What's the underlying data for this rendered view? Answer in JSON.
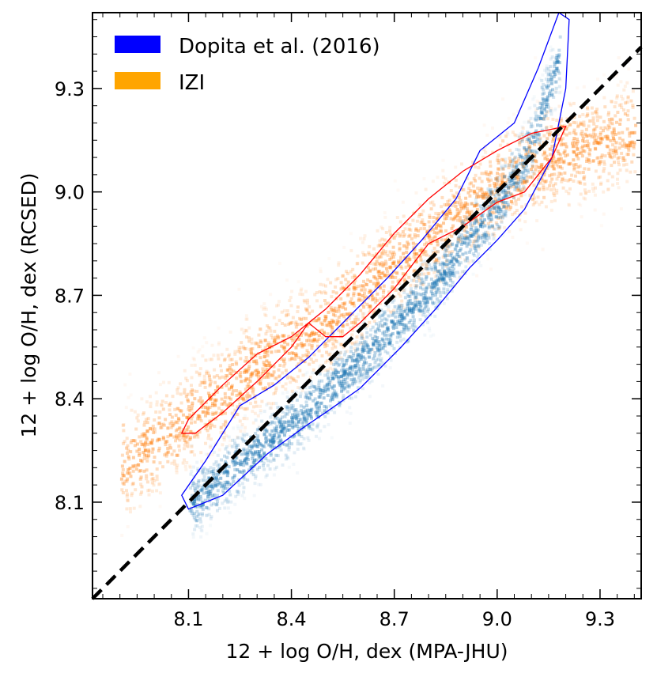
{
  "chart_data": {
    "type": "scatter",
    "xlabel": "12 + log O/H, dex (MPA-JHU)",
    "ylabel": "12 + log O/H, dex (RCSED)",
    "xlim": [
      7.82,
      9.42
    ],
    "ylim": [
      7.82,
      9.52
    ],
    "x_ticks": [
      8.1,
      8.4,
      8.7,
      9.0,
      9.3
    ],
    "y_ticks": [
      8.1,
      8.4,
      8.7,
      9.0,
      9.3
    ],
    "x_tick_labels": [
      "8.1",
      "8.4",
      "8.7",
      "9.0",
      "9.3"
    ],
    "y_tick_labels": [
      "8.1",
      "8.4",
      "8.7",
      "9.0",
      "9.3"
    ],
    "grid": false,
    "legend_position": "top-left",
    "reference_line": {
      "name": "one-to-one",
      "style": "dashed",
      "color": "#000000",
      "points": [
        [
          7.82,
          7.82
        ],
        [
          9.42,
          9.42
        ]
      ]
    },
    "series": [
      {
        "name": "Dopita et al. (2016)",
        "legend_color": "#0000ff",
        "density_color": "#1f77b4",
        "contour_color": "#0000ff",
        "ridge": [
          [
            8.1,
            8.1
          ],
          [
            8.25,
            8.22
          ],
          [
            8.4,
            8.33
          ],
          [
            8.55,
            8.47
          ],
          [
            8.7,
            8.62
          ],
          [
            8.8,
            8.72
          ],
          [
            8.9,
            8.85
          ],
          [
            9.0,
            8.97
          ],
          [
            9.05,
            9.05
          ],
          [
            9.1,
            9.15
          ],
          [
            9.15,
            9.3
          ],
          [
            9.18,
            9.4
          ]
        ],
        "outer_contour": [
          [
            8.1,
            8.08
          ],
          [
            8.2,
            8.12
          ],
          [
            8.33,
            8.24
          ],
          [
            8.44,
            8.32
          ],
          [
            8.5,
            8.36
          ],
          [
            8.6,
            8.43
          ],
          [
            8.72,
            8.55
          ],
          [
            8.82,
            8.66
          ],
          [
            8.92,
            8.78
          ],
          [
            9.0,
            8.86
          ],
          [
            9.08,
            8.95
          ],
          [
            9.16,
            9.1
          ],
          [
            9.2,
            9.3
          ],
          [
            9.21,
            9.5
          ],
          [
            9.18,
            9.52
          ],
          [
            9.12,
            9.36
          ],
          [
            9.05,
            9.2
          ],
          [
            8.95,
            9.12
          ],
          [
            8.88,
            8.98
          ],
          [
            8.78,
            8.86
          ],
          [
            8.68,
            8.75
          ],
          [
            8.55,
            8.62
          ],
          [
            8.45,
            8.52
          ],
          [
            8.35,
            8.44
          ],
          [
            8.25,
            8.38
          ],
          [
            8.15,
            8.22
          ],
          [
            8.08,
            8.12
          ]
        ]
      },
      {
        "name": "IZI",
        "legend_color": "#ffa500",
        "density_color": "#ff7f0e",
        "contour_color": "#ff0000",
        "ridge": [
          [
            7.9,
            8.2
          ],
          [
            8.1,
            8.35
          ],
          [
            8.3,
            8.5
          ],
          [
            8.5,
            8.62
          ],
          [
            8.7,
            8.8
          ],
          [
            8.9,
            8.95
          ],
          [
            9.0,
            9.02
          ],
          [
            9.1,
            9.08
          ],
          [
            9.2,
            9.12
          ],
          [
            9.3,
            9.15
          ],
          [
            9.4,
            9.18
          ]
        ],
        "outer_contour": [
          [
            8.08,
            8.3
          ],
          [
            8.1,
            8.34
          ],
          [
            8.2,
            8.44
          ],
          [
            8.3,
            8.53
          ],
          [
            8.4,
            8.58
          ],
          [
            8.5,
            8.66
          ],
          [
            8.6,
            8.76
          ],
          [
            8.7,
            8.88
          ],
          [
            8.8,
            8.98
          ],
          [
            8.9,
            9.06
          ],
          [
            9.0,
            9.12
          ],
          [
            9.1,
            9.17
          ],
          [
            9.2,
            9.19
          ],
          [
            9.16,
            9.1
          ],
          [
            9.08,
            9.0
          ],
          [
            9.0,
            8.97
          ],
          [
            8.9,
            8.9
          ],
          [
            8.8,
            8.85
          ],
          [
            8.7,
            8.72
          ],
          [
            8.6,
            8.62
          ],
          [
            8.55,
            8.58
          ],
          [
            8.5,
            8.58
          ],
          [
            8.45,
            8.62
          ],
          [
            8.4,
            8.55
          ],
          [
            8.3,
            8.45
          ],
          [
            8.2,
            8.36
          ],
          [
            8.12,
            8.3
          ]
        ]
      }
    ]
  }
}
